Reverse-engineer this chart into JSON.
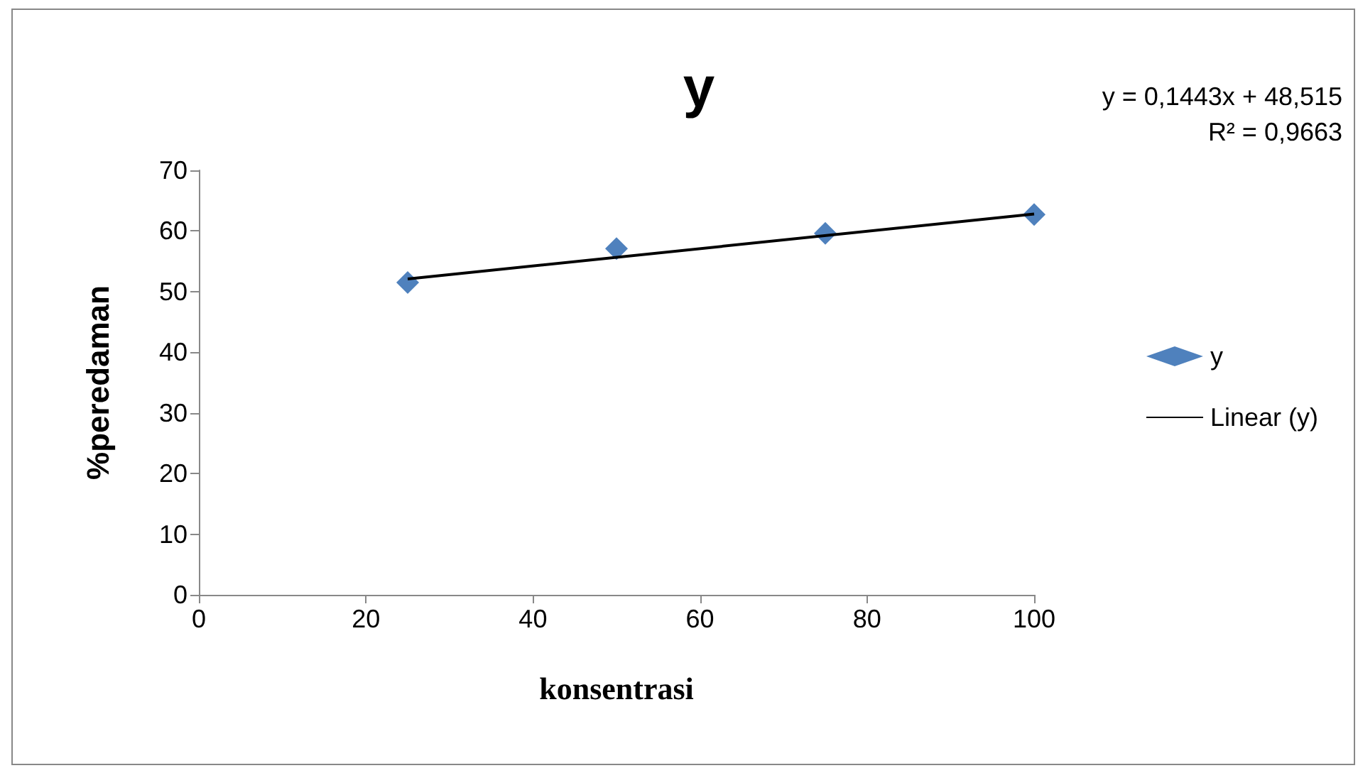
{
  "chart_data": {
    "type": "scatter",
    "title": "y",
    "xlabel": "konsentrasi",
    "ylabel": "%peredaman",
    "xlim": [
      0,
      100
    ],
    "xticks": [
      0,
      20,
      40,
      60,
      80,
      100
    ],
    "ylim": [
      0,
      70
    ],
    "yticks": [
      0,
      10,
      20,
      30,
      40,
      50,
      60,
      70
    ],
    "grid": false,
    "legend": "right",
    "marker": "diamond",
    "annotations": [
      "y = 0,1443x + 48,515",
      "R² = 0,9663"
    ],
    "series": [
      {
        "name": "y",
        "color": "#4f81bd",
        "x": [
          25,
          50,
          75,
          100
        ],
        "values": [
          51.5,
          57.1,
          59.6,
          62.7
        ]
      },
      {
        "name": "Linear (y)",
        "type": "line",
        "color": "#000000",
        "marker": "none",
        "x": [
          25,
          100
        ],
        "values": [
          52.1,
          62.8
        ]
      }
    ]
  }
}
